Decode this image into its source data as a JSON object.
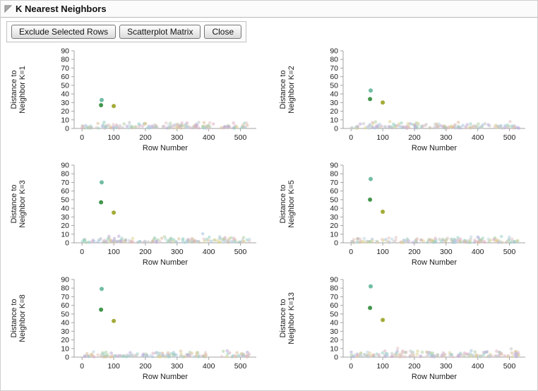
{
  "title": "K Nearest Neighbors",
  "buttons": [
    {
      "label": "Exclude Selected Rows"
    },
    {
      "label": "Scatterplot Matrix"
    },
    {
      "label": "Close"
    }
  ],
  "point_palette": [
    "#dcaec6",
    "#b0d0a6",
    "#a8c2de",
    "#dcd494",
    "#bcaad8",
    "#c4c4c4",
    "#98d2c2",
    "#dcbe9a",
    "#e2c4c4",
    "#bed6e0"
  ],
  "baseline": {
    "seed": 42,
    "count": 155,
    "x_max": 530,
    "y_typ_max": 7.5,
    "tall_chance": 0.07,
    "tall_extra": 6
  },
  "chart_data": [
    {
      "type": "scatter",
      "k": 1,
      "ylabel_lines": [
        "Distance to",
        "Neighbor K=1"
      ],
      "xlabel": "Row Number",
      "xlim": [
        -25,
        550
      ],
      "ylim": [
        0,
        90
      ],
      "xticks": [
        0,
        100,
        200,
        300,
        400,
        500
      ],
      "yticks": [
        0,
        10,
        20,
        30,
        40,
        50,
        60,
        70,
        80,
        90
      ],
      "outliers": [
        {
          "x": 62,
          "y": 33,
          "color": "#63b59b"
        },
        {
          "x": 60,
          "y": 27,
          "color": "#2e8b3a"
        },
        {
          "x": 100,
          "y": 26,
          "color": "#9aa224"
        }
      ]
    },
    {
      "type": "scatter",
      "k": 2,
      "ylabel_lines": [
        "Distance to",
        "Neighbor K=2"
      ],
      "xlabel": "Row Number",
      "xlim": [
        -25,
        550
      ],
      "ylim": [
        0,
        90
      ],
      "xticks": [
        0,
        100,
        200,
        300,
        400,
        500
      ],
      "yticks": [
        0,
        10,
        20,
        30,
        40,
        50,
        60,
        70,
        80,
        90
      ],
      "outliers": [
        {
          "x": 62,
          "y": 44,
          "color": "#63b59b"
        },
        {
          "x": 60,
          "y": 34,
          "color": "#2e8b3a"
        },
        {
          "x": 100,
          "y": 30,
          "color": "#9aa224"
        }
      ]
    },
    {
      "type": "scatter",
      "k": 3,
      "ylabel_lines": [
        "Distance to",
        "Neighbor K=3"
      ],
      "xlabel": "Row Number",
      "xlim": [
        -25,
        550
      ],
      "ylim": [
        0,
        90
      ],
      "xticks": [
        0,
        100,
        200,
        300,
        400,
        500
      ],
      "yticks": [
        0,
        10,
        20,
        30,
        40,
        50,
        60,
        70,
        80,
        90
      ],
      "outliers": [
        {
          "x": 62,
          "y": 70,
          "color": "#63b59b"
        },
        {
          "x": 60,
          "y": 47,
          "color": "#2e8b3a"
        },
        {
          "x": 100,
          "y": 35,
          "color": "#9aa224"
        }
      ]
    },
    {
      "type": "scatter",
      "k": 5,
      "ylabel_lines": [
        "Distance to",
        "Neighbor K=5"
      ],
      "xlabel": "Row Number",
      "xlim": [
        -25,
        550
      ],
      "ylim": [
        0,
        90
      ],
      "xticks": [
        0,
        100,
        200,
        300,
        400,
        500
      ],
      "yticks": [
        0,
        10,
        20,
        30,
        40,
        50,
        60,
        70,
        80,
        90
      ],
      "outliers": [
        {
          "x": 62,
          "y": 74,
          "color": "#63b59b"
        },
        {
          "x": 60,
          "y": 50,
          "color": "#2e8b3a"
        },
        {
          "x": 100,
          "y": 36,
          "color": "#9aa224"
        }
      ]
    },
    {
      "type": "scatter",
      "k": 8,
      "ylabel_lines": [
        "Distance to",
        "Neighbor K=8"
      ],
      "xlabel": "Row Number",
      "xlim": [
        -25,
        550
      ],
      "ylim": [
        0,
        90
      ],
      "xticks": [
        0,
        100,
        200,
        300,
        400,
        500
      ],
      "yticks": [
        0,
        10,
        20,
        30,
        40,
        50,
        60,
        70,
        80,
        90
      ],
      "outliers": [
        {
          "x": 62,
          "y": 79,
          "color": "#63b59b"
        },
        {
          "x": 60,
          "y": 55,
          "color": "#2e8b3a"
        },
        {
          "x": 100,
          "y": 42,
          "color": "#9aa224"
        }
      ]
    },
    {
      "type": "scatter",
      "k": 13,
      "ylabel_lines": [
        "Distance to",
        "Neighbor K=13"
      ],
      "xlabel": "Row Number",
      "xlim": [
        -25,
        550
      ],
      "ylim": [
        0,
        90
      ],
      "xticks": [
        0,
        100,
        200,
        300,
        400,
        500
      ],
      "yticks": [
        0,
        10,
        20,
        30,
        40,
        50,
        60,
        70,
        80,
        90
      ],
      "outliers": [
        {
          "x": 62,
          "y": 82,
          "color": "#63b59b"
        },
        {
          "x": 60,
          "y": 57,
          "color": "#2e8b3a"
        },
        {
          "x": 100,
          "y": 43,
          "color": "#9aa224"
        }
      ]
    }
  ]
}
